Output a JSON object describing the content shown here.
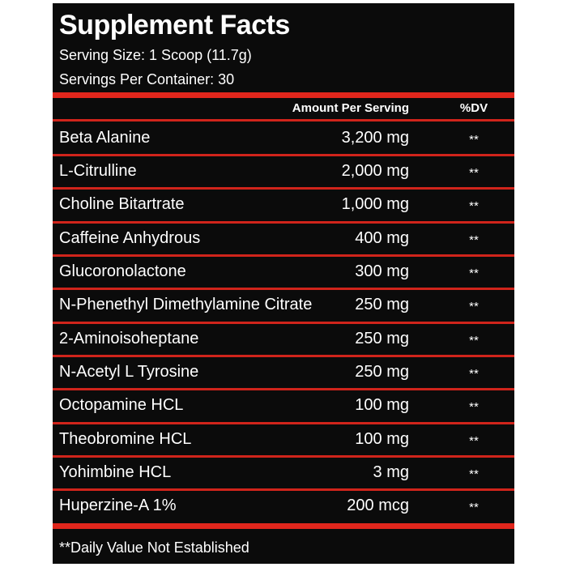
{
  "header": {
    "title": "Supplement Facts",
    "serving_size": "Serving Size: 1 Scoop (11.7g)",
    "servings_per_container": "Servings Per Container: 30"
  },
  "table": {
    "columns": [
      "Amount Per Serving",
      "%DV"
    ],
    "rows": [
      [
        "Beta Alanine",
        "3,200 mg",
        "**"
      ],
      [
        "L-Citrulline",
        "2,000 mg",
        "**"
      ],
      [
        "Choline Bitartrate",
        "1,000 mg",
        "**"
      ],
      [
        "Caffeine Anhydrous",
        "400 mg",
        "**"
      ],
      [
        "Glucoronolactone",
        "300 mg",
        "**"
      ],
      [
        "N-Phenethyl Dimethylamine Citrate",
        "250 mg",
        "**"
      ],
      [
        "2-Aminoisoheptane",
        "250 mg",
        "**"
      ],
      [
        "N-Acetyl L Tyrosine",
        "250 mg",
        "**"
      ],
      [
        "Octopamine HCL",
        "100 mg",
        "**"
      ],
      [
        "Theobromine HCL",
        "100 mg",
        "**"
      ],
      [
        "Yohimbine HCL",
        "3 mg",
        "**"
      ],
      [
        "Huperzine-A 1%",
        "200 mcg",
        "**"
      ]
    ]
  },
  "footnote": "**Daily Value Not Established"
}
